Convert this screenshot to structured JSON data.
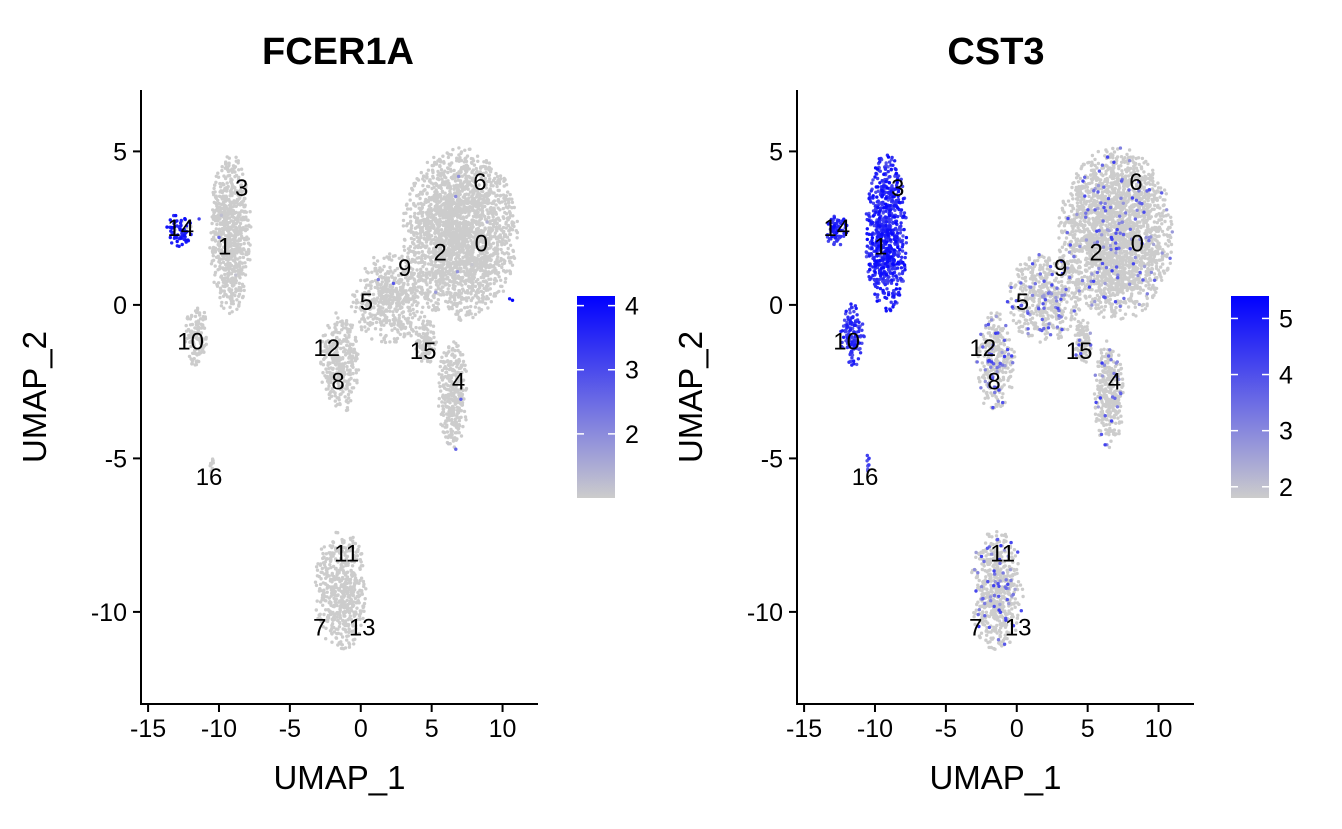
{
  "chart_data": [
    {
      "type": "scatter",
      "title": "FCER1A",
      "xlabel": "UMAP_1",
      "ylabel": "UMAP_2",
      "xlim": [
        -15.5,
        12.5
      ],
      "ylim": [
        -13,
        7
      ],
      "x_ticks": [
        -15,
        -10,
        -5,
        0,
        5,
        10
      ],
      "x_tick_labels": [
        "-15",
        "-10",
        "-5",
        "0",
        "5",
        "10"
      ],
      "y_ticks": [
        -10,
        -5,
        0,
        5
      ],
      "y_tick_labels": [
        "-10",
        "-5",
        "0",
        "5"
      ],
      "grid": false,
      "colorscale": {
        "low": "#cccccc",
        "high": "#0000ff",
        "range": [
          1.0,
          4.15
        ],
        "ticks": [
          2,
          3,
          4
        ],
        "tick_labels": [
          "2",
          "3",
          "4"
        ]
      },
      "legend_placement": "right",
      "cluster_labels": [
        {
          "text": "0",
          "x": 8.5,
          "y": 2.0
        },
        {
          "text": "1",
          "x": -9.6,
          "y": 1.9
        },
        {
          "text": "2",
          "x": 5.6,
          "y": 1.7
        },
        {
          "text": "3",
          "x": -8.4,
          "y": 3.8
        },
        {
          "text": "4",
          "x": 6.9,
          "y": -2.5
        },
        {
          "text": "5",
          "x": 0.4,
          "y": 0.1
        },
        {
          "text": "6",
          "x": 8.4,
          "y": 4.0
        },
        {
          "text": "7",
          "x": -2.9,
          "y": -10.5
        },
        {
          "text": "8",
          "x": -1.6,
          "y": -2.5
        },
        {
          "text": "9",
          "x": 3.1,
          "y": 1.2
        },
        {
          "text": "10",
          "x": -12.0,
          "y": -1.2
        },
        {
          "text": "11",
          "x": -1.0,
          "y": -8.1
        },
        {
          "text": "12",
          "x": -2.4,
          "y": -1.4
        },
        {
          "text": "13",
          "x": 0.1,
          "y": -10.5
        },
        {
          "text": "14",
          "x": -12.7,
          "y": 2.5
        },
        {
          "text": "15",
          "x": 4.4,
          "y": -1.5
        },
        {
          "text": "16",
          "x": -10.7,
          "y": -5.6
        }
      ],
      "clusters": [
        {
          "id": "14",
          "x": -12.8,
          "y": 2.4,
          "rx": 0.9,
          "ry": 0.55,
          "n": 70,
          "expr": [
            3.4,
            4.0
          ],
          "expr_frac": 0.85
        },
        {
          "id": "1/3",
          "x": -9.2,
          "y": 2.3,
          "rx": 1.4,
          "ry": 2.5,
          "n": 700,
          "expr": [
            1.0,
            1.4
          ],
          "expr_frac": 0.01
        },
        {
          "id": "10",
          "x": -11.6,
          "y": -1.0,
          "rx": 0.8,
          "ry": 1.0,
          "n": 130,
          "expr": [
            1.0,
            1.3
          ],
          "expr_frac": 0.0
        },
        {
          "id": "16",
          "x": -10.5,
          "y": -5.2,
          "rx": 0.12,
          "ry": 0.3,
          "n": 10,
          "expr": [
            1.0,
            1.2
          ],
          "expr_frac": 0.0
        },
        {
          "id": "main",
          "x": 7.0,
          "y": 2.3,
          "rx": 3.9,
          "ry": 2.7,
          "n": 2300,
          "expr": [
            1.0,
            2.5
          ],
          "expr_frac": 0.003
        },
        {
          "id": "9/5",
          "x": 2.0,
          "y": 0.2,
          "rx": 2.6,
          "ry": 1.4,
          "n": 500,
          "expr": [
            1.0,
            2.3
          ],
          "expr_frac": 0.005
        },
        {
          "id": "12/8",
          "x": -1.5,
          "y": -1.9,
          "rx": 1.3,
          "ry": 1.6,
          "n": 320,
          "expr": [
            1.0,
            1.3
          ],
          "expr_frac": 0.0
        },
        {
          "id": "15",
          "x": 4.6,
          "y": -1.2,
          "rx": 0.7,
          "ry": 0.7,
          "n": 110,
          "expr": [
            1.0,
            1.3
          ],
          "expr_frac": 0.0
        },
        {
          "id": "4",
          "x": 6.5,
          "y": -2.9,
          "rx": 1.0,
          "ry": 1.7,
          "n": 320,
          "expr": [
            1.0,
            2.8
          ],
          "expr_frac": 0.005
        },
        {
          "id": "7/11/13",
          "x": -1.4,
          "y": -9.3,
          "rx": 1.8,
          "ry": 1.9,
          "n": 540,
          "expr": [
            1.0,
            1.3
          ],
          "expr_frac": 0.0
        }
      ],
      "outliers": [
        {
          "x": 10.7,
          "y": 0.15,
          "expr": 4.1
        },
        {
          "x": 10.5,
          "y": 0.2,
          "expr": 3.8
        },
        {
          "x": -11.4,
          "y": 2.8,
          "expr": 3.2
        },
        {
          "x": -10.0,
          "y": 2.2,
          "expr": 2.6
        },
        {
          "x": 6.7,
          "y": -4.7,
          "expr": 2.6
        },
        {
          "x": 2.3,
          "y": 0.7,
          "expr": 2.8
        }
      ]
    },
    {
      "type": "scatter",
      "title": "CST3",
      "xlabel": "UMAP_1",
      "ylabel": "UMAP_2",
      "xlim": [
        -15.5,
        12.5
      ],
      "ylim": [
        -13,
        7
      ],
      "x_ticks": [
        -15,
        -10,
        -5,
        0,
        5,
        10
      ],
      "x_tick_labels": [
        "-15",
        "-10",
        "-5",
        "0",
        "5",
        "10"
      ],
      "y_ticks": [
        -10,
        -5,
        0,
        5
      ],
      "y_tick_labels": [
        "-10",
        "-5",
        "0",
        "5"
      ],
      "grid": false,
      "colorscale": {
        "low": "#cccccc",
        "high": "#0000ff",
        "range": [
          1.8,
          5.4
        ],
        "ticks": [
          2,
          3,
          4,
          5
        ],
        "tick_labels": [
          "2",
          "3",
          "4",
          "5"
        ]
      },
      "legend_placement": "right",
      "cluster_labels": [
        {
          "text": "0",
          "x": 8.5,
          "y": 2.0
        },
        {
          "text": "1",
          "x": -9.6,
          "y": 1.9
        },
        {
          "text": "2",
          "x": 5.6,
          "y": 1.7
        },
        {
          "text": "3",
          "x": -8.4,
          "y": 3.8
        },
        {
          "text": "4",
          "x": 6.9,
          "y": -2.5
        },
        {
          "text": "5",
          "x": 0.4,
          "y": 0.1
        },
        {
          "text": "6",
          "x": 8.4,
          "y": 4.0
        },
        {
          "text": "7",
          "x": -2.9,
          "y": -10.5
        },
        {
          "text": "8",
          "x": -1.6,
          "y": -2.5
        },
        {
          "text": "9",
          "x": 3.1,
          "y": 1.2
        },
        {
          "text": "10",
          "x": -12.0,
          "y": -1.2
        },
        {
          "text": "11",
          "x": -1.0,
          "y": -8.1
        },
        {
          "text": "12",
          "x": -2.4,
          "y": -1.4
        },
        {
          "text": "13",
          "x": 0.1,
          "y": -10.5
        },
        {
          "text": "14",
          "x": -12.7,
          "y": 2.5
        },
        {
          "text": "15",
          "x": 4.4,
          "y": -1.5
        },
        {
          "text": "16",
          "x": -10.7,
          "y": -5.6
        }
      ],
      "clusters": [
        {
          "id": "14",
          "x": -12.8,
          "y": 2.4,
          "rx": 0.9,
          "ry": 0.55,
          "n": 70,
          "expr": [
            4.0,
            5.2
          ],
          "expr_frac": 1.0
        },
        {
          "id": "1/3",
          "x": -9.2,
          "y": 2.3,
          "rx": 1.4,
          "ry": 2.5,
          "n": 700,
          "expr": [
            3.8,
            5.3
          ],
          "expr_frac": 1.0
        },
        {
          "id": "10",
          "x": -11.6,
          "y": -1.0,
          "rx": 0.8,
          "ry": 1.0,
          "n": 130,
          "expr": [
            3.6,
            5.0
          ],
          "expr_frac": 1.0
        },
        {
          "id": "16",
          "x": -10.5,
          "y": -5.2,
          "rx": 0.12,
          "ry": 0.3,
          "n": 10,
          "expr": [
            3.5,
            4.5
          ],
          "expr_frac": 1.0
        },
        {
          "id": "main",
          "x": 7.0,
          "y": 2.3,
          "rx": 3.9,
          "ry": 2.7,
          "n": 2300,
          "expr": [
            2.5,
            4.3
          ],
          "expr_frac": 0.05
        },
        {
          "id": "9/5",
          "x": 2.0,
          "y": 0.2,
          "rx": 2.6,
          "ry": 1.4,
          "n": 500,
          "expr": [
            2.5,
            4.2
          ],
          "expr_frac": 0.09
        },
        {
          "id": "12/8",
          "x": -1.5,
          "y": -1.9,
          "rx": 1.3,
          "ry": 1.6,
          "n": 320,
          "expr": [
            2.5,
            4.4
          ],
          "expr_frac": 0.12
        },
        {
          "id": "15",
          "x": 4.6,
          "y": -1.2,
          "rx": 0.7,
          "ry": 0.7,
          "n": 110,
          "expr": [
            2.5,
            4.4
          ],
          "expr_frac": 0.1
        },
        {
          "id": "4",
          "x": 6.5,
          "y": -2.9,
          "rx": 1.0,
          "ry": 1.7,
          "n": 320,
          "expr": [
            2.5,
            4.4
          ],
          "expr_frac": 0.1
        },
        {
          "id": "7/11/13",
          "x": -1.4,
          "y": -9.3,
          "rx": 1.8,
          "ry": 1.9,
          "n": 540,
          "expr": [
            2.5,
            4.4
          ],
          "expr_frac": 0.1
        }
      ],
      "outliers": []
    }
  ]
}
